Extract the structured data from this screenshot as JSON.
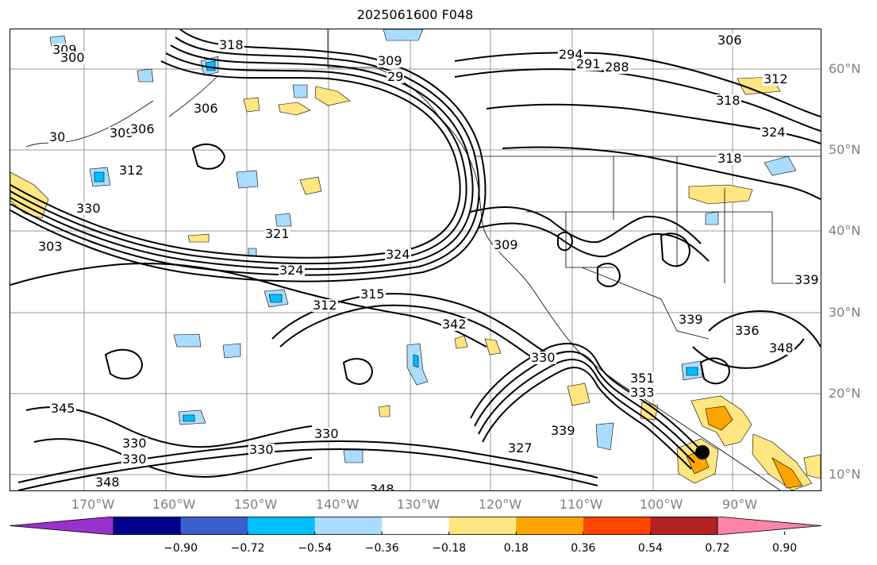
{
  "title": "2025061600 F048",
  "lat_labels": [
    "60°N",
    "50°N",
    "40°N",
    "30°N",
    "20°N",
    "10°N"
  ],
  "lon_labels": [
    "170°W",
    "160°W",
    "150°W",
    "140°W",
    "130°W",
    "120°W",
    "110°W",
    "100°W",
    "90°W"
  ],
  "contour_labels": [
    "318",
    "309",
    "300",
    "306",
    "30",
    "309",
    "312",
    "309",
    "29",
    "294",
    "291",
    "288",
    "306",
    "312",
    "318",
    "324",
    "318",
    "306",
    "330",
    "303",
    "321",
    "324",
    "324",
    "309",
    "312",
    "315",
    "342",
    "339",
    "339",
    "336",
    "348",
    "351",
    "333",
    "330",
    "339",
    "327",
    "330",
    "330",
    "330",
    "330",
    "345",
    "348",
    "348"
  ],
  "colorbar": {
    "ticks": [
      "−0.90",
      "−0.72",
      "−0.54",
      "−0.36",
      "−0.18",
      "0.18",
      "0.36",
      "0.54",
      "0.72",
      "0.90"
    ],
    "colors": [
      "#9932cc",
      "#00008b",
      "#3a5fcd",
      "#00bfff",
      "#aadcff",
      "#ffffff",
      "#ffe680",
      "#ffa500",
      "#ff4500",
      "#b22222",
      "#ff85a8"
    ]
  },
  "shading_colors": {
    "light_blue": "#aadcff",
    "blue": "#00bfff",
    "yellow": "#ffe680",
    "orange": "#ffa500"
  },
  "marker_color": "#000000"
}
